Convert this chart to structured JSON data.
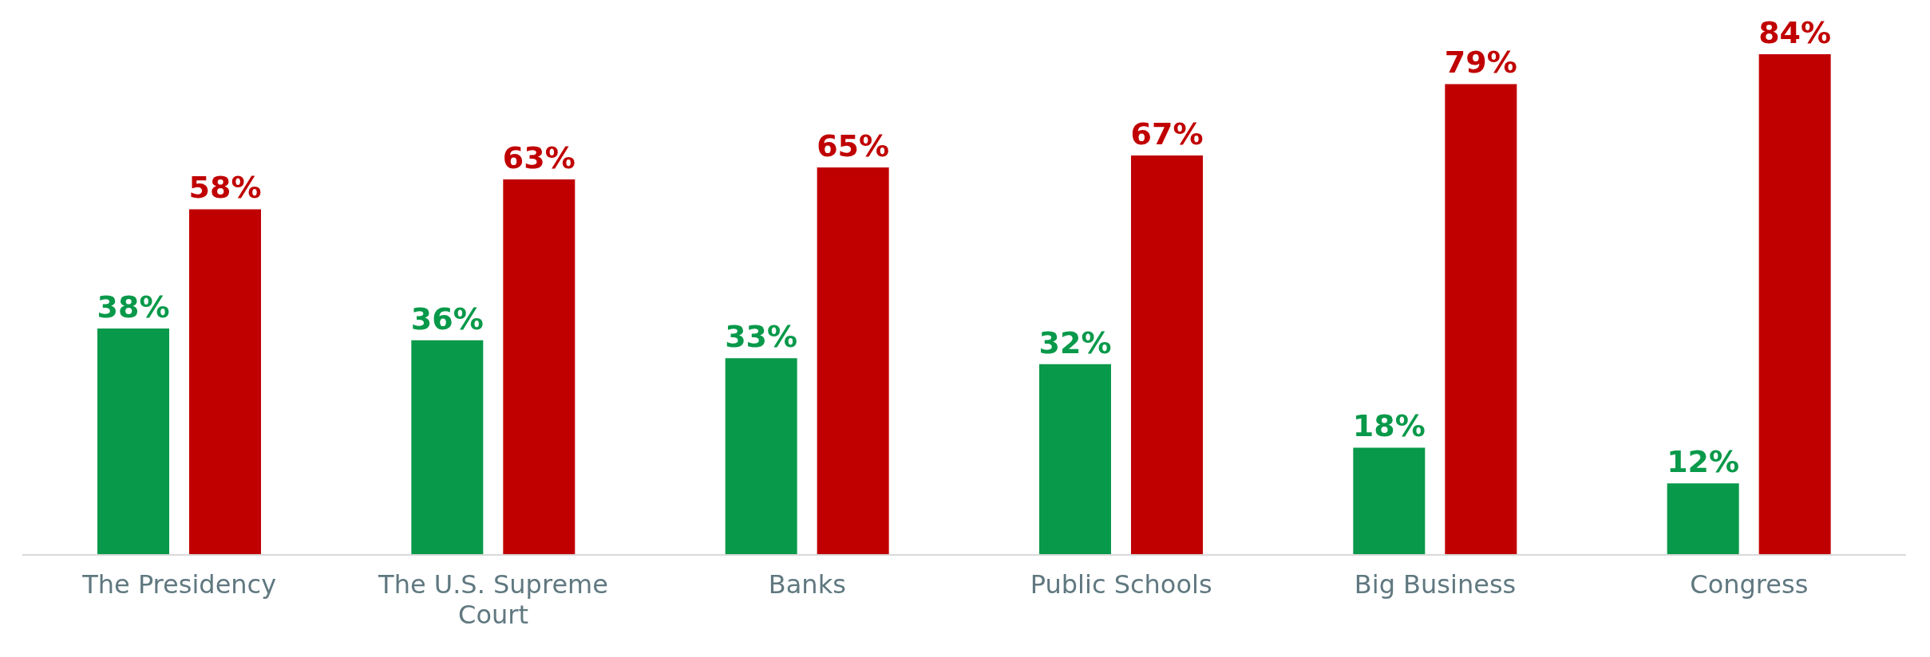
{
  "chart_data": {
    "type": "bar",
    "categories": [
      "The Presidency",
      "The U.S. Supreme Court",
      "Banks",
      "Public Schools",
      "Big Business",
      "Congress"
    ],
    "series": [
      {
        "color": "#08994a",
        "values": [
          38,
          36,
          33,
          32,
          18,
          12
        ],
        "value_labels": [
          "38%",
          "36%",
          "33%",
          "32%",
          "18%",
          "12%"
        ]
      },
      {
        "color": "#c00000",
        "values": [
          58,
          63,
          65,
          67,
          79,
          84
        ],
        "value_labels": [
          "58%",
          "63%",
          "65%",
          "67%",
          "79%",
          "84%"
        ]
      }
    ],
    "legend": false,
    "grid": false
  }
}
